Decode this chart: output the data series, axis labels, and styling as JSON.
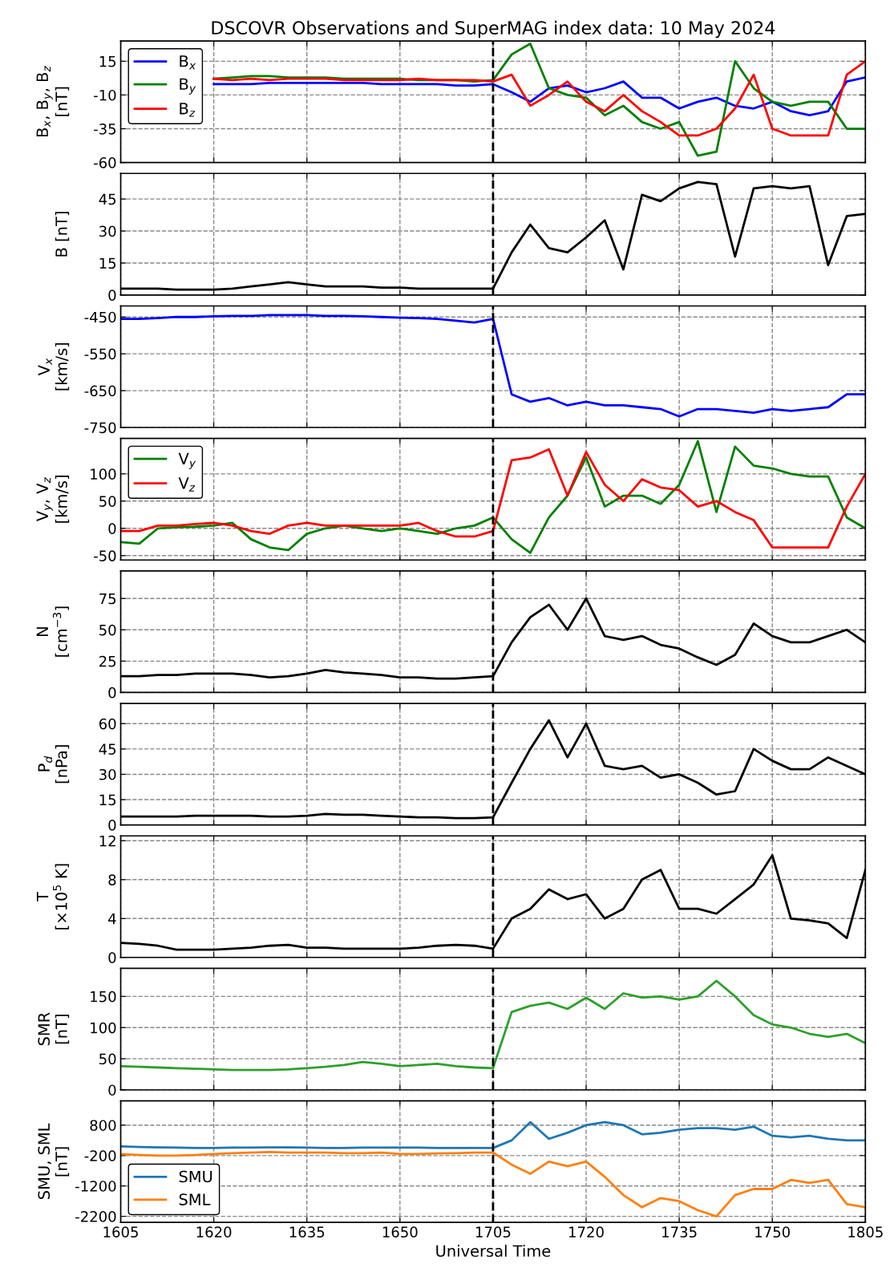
{
  "chart_data": [
    {
      "type": "line",
      "title": "DSCOVR Observations and SuperMAG index data: 10 May 2024",
      "ylabel": "B$_{x}$, B$_{y}$, B$_{z}$\n[nT]",
      "categories": [
        "1605",
        null,
        null,
        null,
        null,
        "1620",
        null,
        null,
        null,
        null,
        "1635",
        null,
        null,
        null,
        null,
        "1650",
        null,
        null,
        null,
        null,
        "1705",
        null,
        null,
        null,
        null,
        "1720",
        null,
        null,
        null,
        null,
        "1735",
        null,
        null,
        null,
        null,
        "1750",
        null,
        null,
        null,
        null,
        "1805"
      ],
      "series": [
        {
          "name": "B$_{x}$",
          "color": "#0000ff",
          "values": [
            null,
            null,
            null,
            null,
            null,
            -2,
            -2,
            -2,
            -1,
            -1,
            -1,
            -1,
            -1,
            -1,
            -2,
            -2,
            -2,
            -2,
            -3,
            -3,
            -2,
            -8,
            -15,
            -5,
            -3,
            -8,
            -5,
            0,
            -12,
            -12,
            -20,
            -15,
            -12,
            -18,
            -20,
            -15,
            -22,
            -25,
            -22,
            0,
            3
          ]
        },
        {
          "name": "B$_{y}$",
          "color": "#008000",
          "values": [
            null,
            null,
            null,
            null,
            null,
            2,
            3,
            4,
            4,
            3,
            3,
            3,
            2,
            2,
            2,
            2,
            1,
            1,
            1,
            0,
            1,
            20,
            28,
            -5,
            -10,
            -12,
            -25,
            -18,
            -30,
            -35,
            -30,
            -55,
            -52,
            15,
            -5,
            -15,
            -18,
            -15,
            -15,
            -35,
            -35
          ]
        },
        {
          "name": "B$_{z}$",
          "color": "#ff0000",
          "values": [
            null,
            null,
            null,
            null,
            null,
            2,
            1,
            2,
            1,
            2,
            2,
            2,
            1,
            1,
            1,
            1,
            2,
            1,
            1,
            1,
            0,
            5,
            -18,
            -10,
            0,
            -15,
            -22,
            -10,
            -22,
            -30,
            -40,
            -40,
            -35,
            -20,
            5,
            -35,
            -40,
            -40,
            -40,
            5,
            15
          ]
        }
      ],
      "ylim": [
        -60,
        30
      ],
      "yticks": [
        -60,
        -35,
        -10,
        15
      ],
      "grid": true,
      "legend": "top left",
      "tick_labels": "y",
      "ref_lines": [
        {
          "axis": "x",
          "value": "1705",
          "color": "#000000",
          "line_style": "dashed"
        }
      ]
    },
    {
      "type": "line",
      "ylabel": "B [nT]",
      "categories": [
        "1605",
        null,
        null,
        null,
        null,
        "1620",
        null,
        null,
        null,
        null,
        "1635",
        null,
        null,
        null,
        null,
        "1650",
        null,
        null,
        null,
        null,
        "1705",
        null,
        null,
        null,
        null,
        "1720",
        null,
        null,
        null,
        null,
        "1735",
        null,
        null,
        null,
        null,
        "1750",
        null,
        null,
        null,
        null,
        "1805"
      ],
      "series": [
        {
          "color": "#000000",
          "values": [
            3,
            3,
            3,
            2.5,
            2.5,
            2.5,
            3,
            4,
            5,
            6,
            5,
            4,
            4,
            4,
            3.5,
            3.5,
            3,
            3,
            3,
            3,
            3,
            20,
            33,
            22,
            20,
            27,
            35,
            12,
            47,
            44,
            50,
            53,
            52,
            18,
            50,
            51,
            50,
            51,
            14,
            37,
            38
          ]
        }
      ],
      "ylim": [
        0,
        57
      ],
      "yticks": [
        0,
        15,
        30,
        45
      ],
      "grid": true,
      "tick_labels": "y",
      "ref_lines": [
        {
          "axis": "x",
          "value": "1705",
          "color": "#000000",
          "line_style": "dashed"
        }
      ]
    },
    {
      "type": "line",
      "ylabel": "V$_{x}$\n[km/s]",
      "categories": [
        "1605",
        null,
        null,
        null,
        null,
        "1620",
        null,
        null,
        null,
        null,
        "1635",
        null,
        null,
        null,
        null,
        "1650",
        null,
        null,
        null,
        null,
        "1705",
        null,
        null,
        null,
        null,
        "1720",
        null,
        null,
        null,
        null,
        "1735",
        null,
        null,
        null,
        null,
        "1750",
        null,
        null,
        null,
        null,
        "1805"
      ],
      "series": [
        {
          "color": "#0000ff",
          "values": [
            -455,
            -455,
            -453,
            -450,
            -450,
            -448,
            -447,
            -447,
            -445,
            -445,
            -445,
            -447,
            -447,
            -448,
            -450,
            -452,
            -453,
            -455,
            -460,
            -465,
            -455,
            -660,
            -680,
            -670,
            -690,
            -680,
            -690,
            -690,
            -695,
            -700,
            -720,
            -700,
            -700,
            -705,
            -710,
            -700,
            -705,
            -700,
            -695,
            -660,
            -660
          ]
        }
      ],
      "ylim": [
        -750,
        -420
      ],
      "yticks": [
        -750,
        -650,
        -550,
        -450
      ],
      "grid": true,
      "tick_labels": "y",
      "ref_lines": [
        {
          "axis": "x",
          "value": "1705",
          "color": "#000000",
          "line_style": "dashed"
        }
      ]
    },
    {
      "type": "line",
      "ylabel": "V$_{y}$, V$_{z}$\n[km/s]",
      "categories": [
        "1605",
        null,
        null,
        null,
        null,
        "1620",
        null,
        null,
        null,
        null,
        "1635",
        null,
        null,
        null,
        null,
        "1650",
        null,
        null,
        null,
        null,
        "1705",
        null,
        null,
        null,
        null,
        "1720",
        null,
        null,
        null,
        null,
        "1735",
        null,
        null,
        null,
        null,
        "1750",
        null,
        null,
        null,
        null,
        "1805"
      ],
      "series": [
        {
          "name": "V$_{y}$",
          "color": "#008000",
          "values": [
            -25,
            -28,
            0,
            2,
            3,
            5,
            10,
            -20,
            -35,
            -40,
            -10,
            0,
            5,
            0,
            -5,
            0,
            -5,
            -10,
            0,
            5,
            20,
            -20,
            -45,
            20,
            60,
            130,
            40,
            60,
            60,
            45,
            80,
            160,
            30,
            150,
            115,
            110,
            100,
            95,
            95,
            20,
            0
          ]
        },
        {
          "name": "V$_{z}$",
          "color": "#ff0000",
          "values": [
            -5,
            -5,
            5,
            5,
            8,
            10,
            5,
            -5,
            -10,
            5,
            10,
            5,
            5,
            5,
            5,
            5,
            10,
            -5,
            -15,
            -15,
            -5,
            125,
            130,
            145,
            60,
            140,
            80,
            50,
            90,
            75,
            70,
            40,
            50,
            30,
            15,
            -35,
            -35,
            -35,
            -35,
            40,
            100
          ]
        }
      ],
      "ylim": [
        -58,
        165
      ],
      "yticks": [
        -50,
        0,
        50,
        100
      ],
      "grid": true,
      "legend": "top left",
      "tick_labels": "y",
      "ref_lines": [
        {
          "axis": "x",
          "value": "1705",
          "color": "#000000",
          "line_style": "dashed"
        }
      ]
    },
    {
      "type": "line",
      "ylabel": "N\n[cm$^{−3}$]",
      "categories": [
        "1605",
        null,
        null,
        null,
        null,
        "1620",
        null,
        null,
        null,
        null,
        "1635",
        null,
        null,
        null,
        null,
        "1650",
        null,
        null,
        null,
        null,
        "1705",
        null,
        null,
        null,
        null,
        "1720",
        null,
        null,
        null,
        null,
        "1735",
        null,
        null,
        null,
        null,
        "1750",
        null,
        null,
        null,
        null,
        "1805"
      ],
      "series": [
        {
          "color": "#000000",
          "values": [
            13,
            13,
            14,
            14,
            15,
            15,
            15,
            14,
            12,
            13,
            15,
            18,
            16,
            15,
            14,
            12,
            12,
            11,
            11,
            12,
            13,
            40,
            60,
            70,
            50,
            75,
            45,
            42,
            45,
            38,
            35,
            28,
            22,
            30,
            55,
            45,
            40,
            40,
            45,
            50,
            40
          ]
        }
      ],
      "ylim": [
        0,
        97
      ],
      "yticks": [
        0,
        25,
        50,
        75
      ],
      "grid": true,
      "tick_labels": "y",
      "ref_lines": [
        {
          "axis": "x",
          "value": "1705",
          "color": "#000000",
          "line_style": "dashed"
        }
      ]
    },
    {
      "type": "line",
      "ylabel": "P$_{d}$\n[nPa]",
      "categories": [
        "1605",
        null,
        null,
        null,
        null,
        "1620",
        null,
        null,
        null,
        null,
        "1635",
        null,
        null,
        null,
        null,
        "1650",
        null,
        null,
        null,
        null,
        "1705",
        null,
        null,
        null,
        null,
        "1720",
        null,
        null,
        null,
        null,
        "1735",
        null,
        null,
        null,
        null,
        "1750",
        null,
        null,
        null,
        null,
        "1805"
      ],
      "series": [
        {
          "color": "#000000",
          "values": [
            5,
            5,
            5,
            5,
            5.5,
            5.5,
            5.5,
            5.5,
            5,
            5,
            5.5,
            6.5,
            6,
            6,
            5.5,
            5,
            4.5,
            4.5,
            4,
            4,
            4.5,
            25,
            45,
            62,
            40,
            60,
            35,
            33,
            35,
            28,
            30,
            25,
            18,
            20,
            45,
            38,
            33,
            33,
            40,
            35,
            30
          ]
        }
      ],
      "ylim": [
        0,
        72
      ],
      "yticks": [
        0,
        15,
        30,
        45,
        60
      ],
      "grid": true,
      "tick_labels": "y",
      "ref_lines": [
        {
          "axis": "x",
          "value": "1705",
          "color": "#000000",
          "line_style": "dashed"
        }
      ]
    },
    {
      "type": "line",
      "ylabel": "T\n[×10$^{5}$ K]",
      "categories": [
        "1605",
        null,
        null,
        null,
        null,
        "1620",
        null,
        null,
        null,
        null,
        "1635",
        null,
        null,
        null,
        null,
        "1650",
        null,
        null,
        null,
        null,
        "1705",
        null,
        null,
        null,
        null,
        "1720",
        null,
        null,
        null,
        null,
        "1735",
        null,
        null,
        null,
        null,
        "1750",
        null,
        null,
        null,
        null,
        "1805"
      ],
      "series": [
        {
          "color": "#000000",
          "values": [
            1.5,
            1.4,
            1.2,
            0.8,
            0.8,
            0.8,
            0.9,
            1,
            1.2,
            1.3,
            1,
            1,
            0.9,
            0.9,
            0.9,
            0.9,
            1,
            1.2,
            1.3,
            1.2,
            0.9,
            4,
            5,
            7,
            6,
            6.5,
            4,
            5,
            8,
            9,
            5,
            5,
            4.5,
            6,
            7.5,
            10.5,
            4,
            3.8,
            3.5,
            2,
            9
          ]
        }
      ],
      "ylim": [
        0,
        12.5
      ],
      "yticks": [
        0,
        4,
        8,
        12
      ],
      "grid": true,
      "tick_labels": "y",
      "ref_lines": [
        {
          "axis": "x",
          "value": "1705",
          "color": "#000000",
          "line_style": "dashed"
        }
      ]
    },
    {
      "type": "line",
      "ylabel": "SMR\n[nT]",
      "categories": [
        "1605",
        null,
        null,
        null,
        null,
        "1620",
        null,
        null,
        null,
        null,
        "1635",
        null,
        null,
        null,
        null,
        "1650",
        null,
        null,
        null,
        null,
        "1705",
        null,
        null,
        null,
        null,
        "1720",
        null,
        null,
        null,
        null,
        "1735",
        null,
        null,
        null,
        null,
        "1750",
        null,
        null,
        null,
        null,
        "1805"
      ],
      "series": [
        {
          "color": "#2ca02c",
          "values": [
            38,
            37,
            36,
            35,
            34,
            33,
            32,
            32,
            32,
            33,
            35,
            37,
            40,
            45,
            42,
            38,
            40,
            42,
            38,
            36,
            35,
            125,
            135,
            140,
            130,
            148,
            130,
            155,
            148,
            150,
            145,
            150,
            175,
            150,
            120,
            105,
            100,
            90,
            85,
            90,
            75
          ]
        }
      ],
      "ylim": [
        0,
        195
      ],
      "yticks": [
        0,
        50,
        100,
        150
      ],
      "grid": true,
      "tick_labels": "y",
      "ref_lines": [
        {
          "axis": "x",
          "value": "1705",
          "color": "#000000",
          "line_style": "dashed"
        }
      ]
    },
    {
      "type": "line",
      "ylabel": "SMU, SML\n[nT]",
      "xlabel": "Universal Time",
      "categories": [
        "1605",
        null,
        null,
        null,
        null,
        "1620",
        null,
        null,
        null,
        null,
        "1635",
        null,
        null,
        null,
        null,
        "1650",
        null,
        null,
        null,
        null,
        "1705",
        null,
        null,
        null,
        null,
        "1720",
        null,
        null,
        null,
        null,
        "1735",
        null,
        null,
        null,
        null,
        "1750",
        null,
        null,
        null,
        null,
        "1805"
      ],
      "series": [
        {
          "name": "SMU",
          "color": "#1f77b4",
          "values": [
            100,
            80,
            70,
            60,
            50,
            50,
            60,
            60,
            70,
            70,
            60,
            50,
            50,
            60,
            60,
            60,
            60,
            50,
            50,
            50,
            50,
            300,
            900,
            350,
            550,
            800,
            900,
            800,
            500,
            550,
            650,
            700,
            700,
            650,
            750,
            450,
            400,
            450,
            350,
            300,
            300
          ]
        },
        {
          "name": "SML",
          "color": "#ff7f0e",
          "values": [
            -150,
            -180,
            -200,
            -200,
            -180,
            -150,
            -120,
            -100,
            -80,
            -100,
            -100,
            -100,
            -120,
            -120,
            -100,
            -150,
            -150,
            -130,
            -120,
            -100,
            -100,
            -500,
            -800,
            -400,
            -550,
            -400,
            -900,
            -1500,
            -1900,
            -1600,
            -1700,
            -2000,
            -2200,
            -1500,
            -1300,
            -1300,
            -1000,
            -1100,
            -1000,
            -1800,
            -1900
          ]
        }
      ],
      "ylim": [
        -2400,
        1600
      ],
      "yticks": [
        -2200,
        -1200,
        -200,
        800
      ],
      "grid": true,
      "legend": "bottom left",
      "ref_lines": [
        {
          "axis": "x",
          "value": "1705",
          "color": "#000000",
          "line_style": "dashed"
        }
      ]
    }
  ]
}
